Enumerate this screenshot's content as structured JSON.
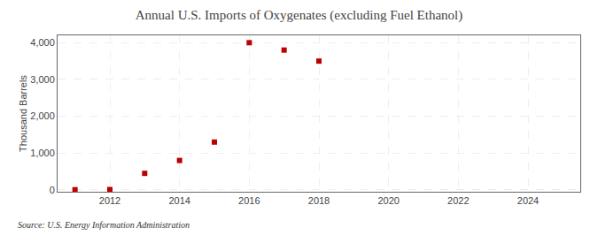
{
  "chart_data": {
    "type": "scatter",
    "title": "Annual U.S. Imports of Oxygenates (excluding Fuel Ethanol)",
    "ylabel": "Thousand Barrels",
    "source": "Source: U.S. Energy Information Administration",
    "x": [
      2011,
      2012,
      2013,
      2014,
      2015,
      2016,
      2017,
      2018
    ],
    "values": [
      5,
      10,
      450,
      800,
      1300,
      4000,
      3800,
      3500
    ],
    "color": "#bb0000",
    "marker": "square",
    "xlim": [
      2010.5,
      2025.5
    ],
    "ylim": [
      -50,
      4200
    ],
    "xticks": [
      2012,
      2014,
      2016,
      2018,
      2020,
      2022,
      2024
    ],
    "yticks": [
      0,
      {
        "value": 1000,
        "label": "1,000"
      },
      {
        "value": 2000,
        "label": "2,000"
      },
      {
        "value": 3000,
        "label": "3,000"
      },
      {
        "value": 4000,
        "label": "4,000"
      }
    ],
    "grid": true
  }
}
